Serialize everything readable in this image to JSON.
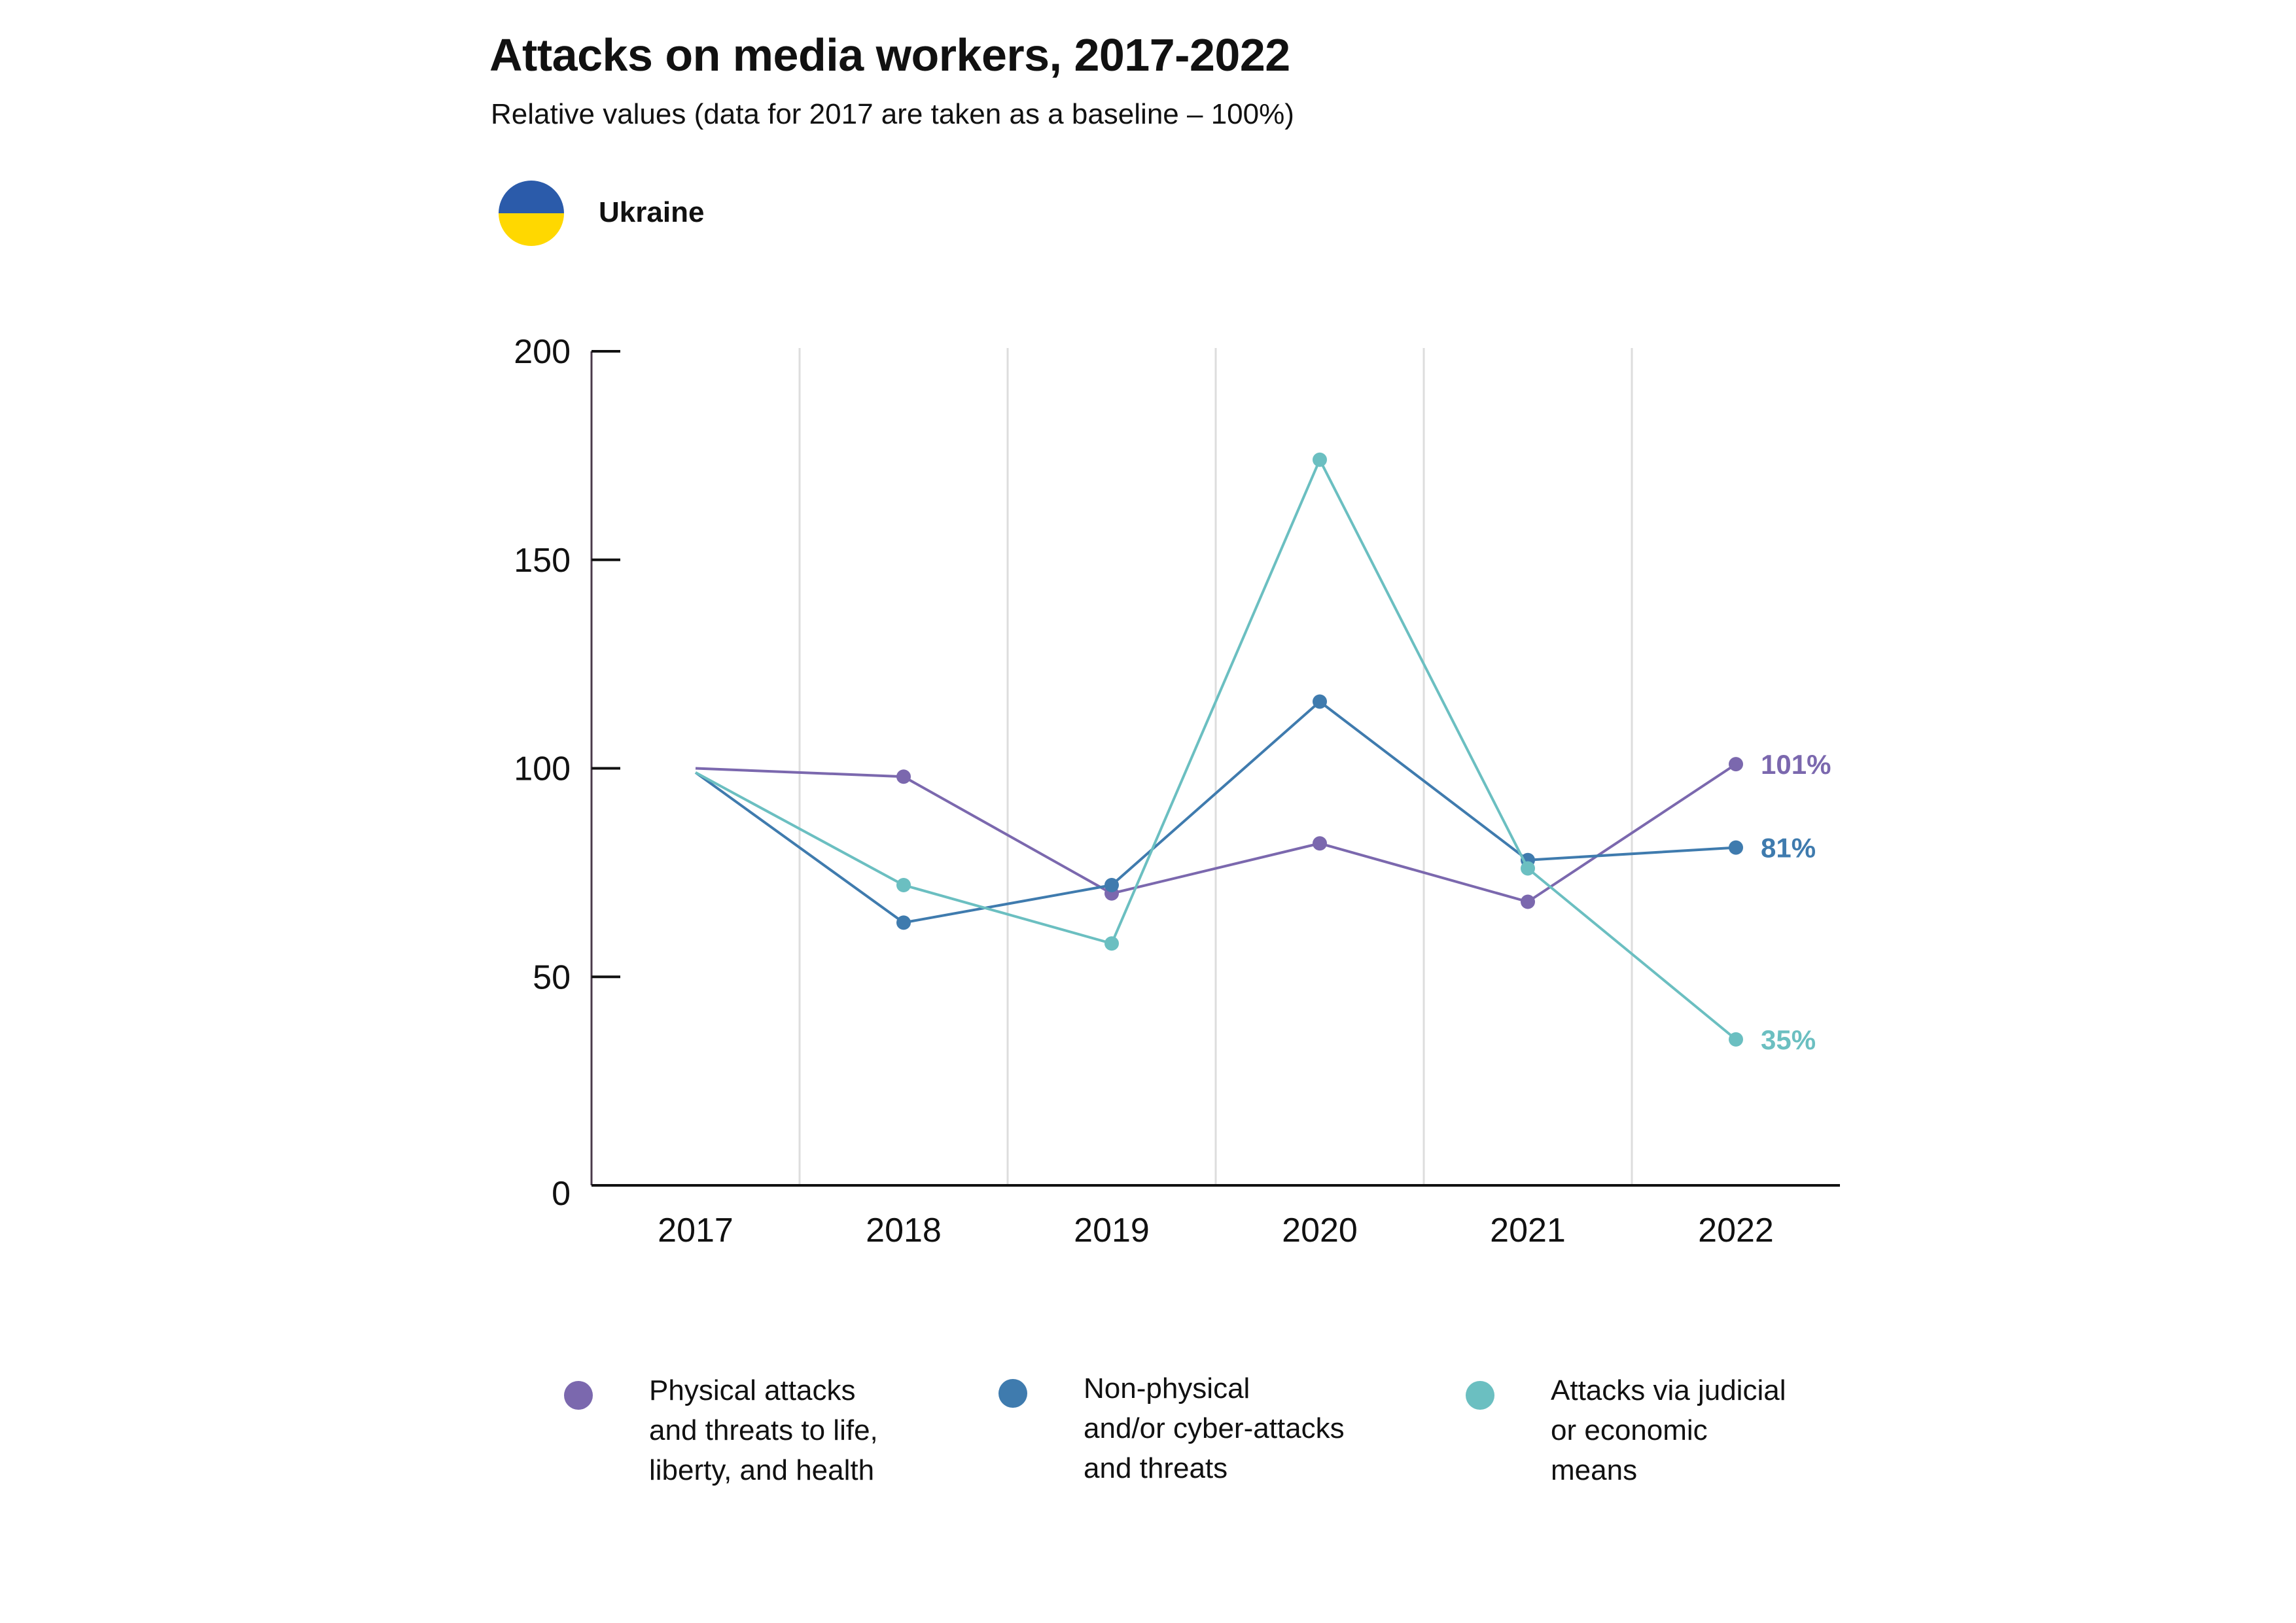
{
  "header": {
    "title": "Attacks on media workers, 2017-2022",
    "subtitle": "Relative values (data for 2017 are taken as a baseline – 100%)",
    "country": "Ukraine",
    "flag_colors": [
      "#2B5BAA",
      "#FFD800"
    ]
  },
  "chart_data": {
    "type": "line",
    "title": "Attacks on media workers, 2017-2022",
    "subtitle": "Relative values (data for 2017 are taken as a baseline – 100%)",
    "x": [
      "2017",
      "2018",
      "2019",
      "2020",
      "2021",
      "2022"
    ],
    "ylim": [
      0,
      200
    ],
    "yticks": [
      0,
      50,
      100,
      150,
      200
    ],
    "grid": "vertical",
    "legend_position": "bottom",
    "series": [
      {
        "name": "Physical attacks\nand threats to life,\nliberty, and health",
        "color": "#7B68AE",
        "values": [
          100,
          98,
          70,
          82,
          68,
          101
        ],
        "end_label": "101%"
      },
      {
        "name": "Non-physical\nand/or cyber-attacks\nand threats",
        "color": "#3F7BAE",
        "values": [
          99,
          63,
          72,
          116,
          78,
          81
        ],
        "end_label": "81%"
      },
      {
        "name": "Attacks via judicial\nor economic\nmeans",
        "color": "#6BBFC1",
        "values": [
          99,
          72,
          58,
          174,
          76,
          35
        ],
        "end_label": "35%"
      }
    ]
  }
}
